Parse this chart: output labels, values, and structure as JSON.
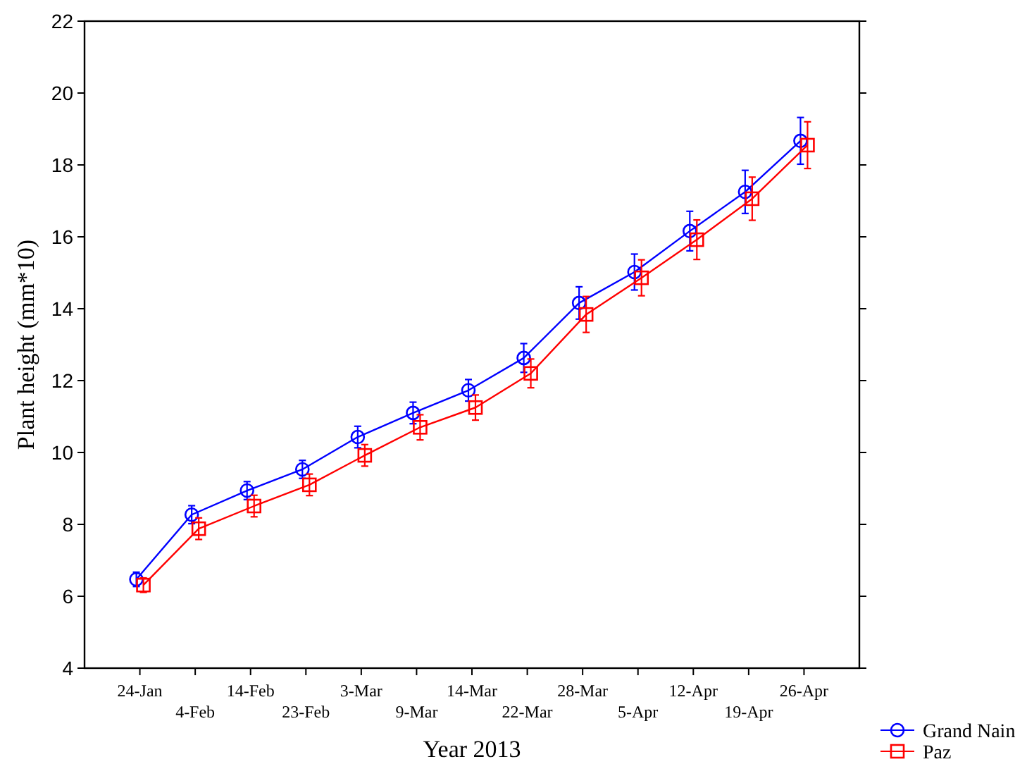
{
  "chart_data": {
    "type": "line",
    "xlabel": "Year 2013",
    "ylabel": "Plant height (mm*10)",
    "categories": [
      "24-Jan",
      "4-Feb",
      "14-Feb",
      "23-Feb",
      "3-Mar",
      "9-Mar",
      "14-Mar",
      "22-Mar",
      "28-Mar",
      "5-Apr",
      "12-Apr",
      "19-Apr",
      "26-Apr"
    ],
    "series": [
      {
        "name": "Grand Nain",
        "color": "#0000ff",
        "marker": "circle",
        "values": [
          6.47,
          8.27,
          8.94,
          9.53,
          10.43,
          11.1,
          11.73,
          12.63,
          14.16,
          15.02,
          16.16,
          17.25,
          18.67
        ],
        "errors": [
          0.2,
          0.25,
          0.25,
          0.25,
          0.3,
          0.3,
          0.3,
          0.4,
          0.45,
          0.5,
          0.55,
          0.6,
          0.65
        ]
      },
      {
        "name": "Paz",
        "color": "#ff0000",
        "marker": "square",
        "values": [
          6.31,
          7.88,
          8.51,
          9.1,
          9.92,
          10.7,
          11.25,
          12.2,
          13.84,
          14.86,
          15.92,
          17.06,
          18.55
        ],
        "errors": [
          0.2,
          0.3,
          0.3,
          0.3,
          0.3,
          0.35,
          0.35,
          0.4,
          0.5,
          0.5,
          0.55,
          0.6,
          0.65
        ]
      }
    ],
    "ylim": [
      4,
      22
    ],
    "yticks": [
      4,
      6,
      8,
      10,
      12,
      14,
      16,
      18,
      20,
      22
    ],
    "grid": false,
    "legend": "bottom right",
    "line_style": "solid"
  }
}
